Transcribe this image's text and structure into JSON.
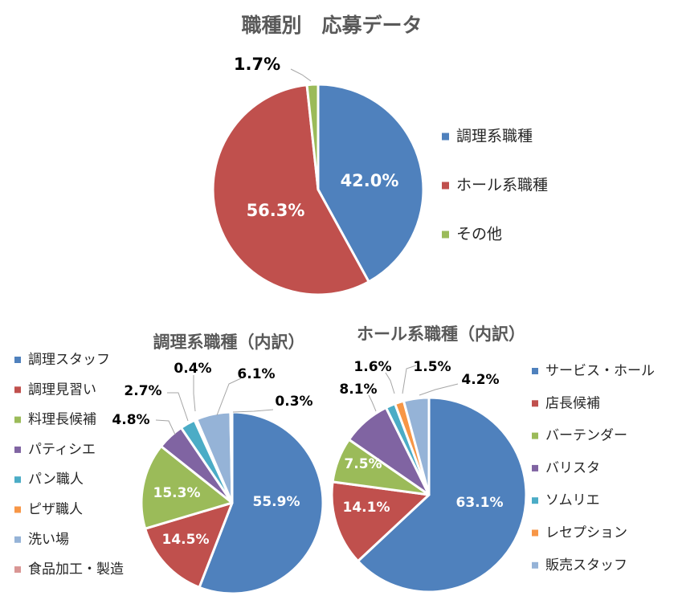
{
  "chart_data": [
    {
      "type": "pie",
      "title": "職種別　応募データ",
      "categories": [
        "調理系職種",
        "ホール系職種",
        "その他"
      ],
      "values": [
        42.0,
        56.3,
        1.7
      ],
      "labels": [
        "42.0%",
        "56.3%",
        "1.7%"
      ],
      "colors": [
        "#4f81bd",
        "#c0504d",
        "#9bbb59"
      ],
      "legend_position": "right"
    },
    {
      "type": "pie",
      "title": "調理系職種（内訳）",
      "categories": [
        "調理スタッフ",
        "調理見習い",
        "料理長候補",
        "パティシエ",
        "パン職人",
        "ピザ職人",
        "洗い場",
        "食品加工・製造"
      ],
      "values": [
        55.9,
        14.5,
        15.3,
        4.8,
        2.7,
        0.4,
        6.1,
        0.3
      ],
      "labels": [
        "55.9%",
        "14.5%",
        "15.3%",
        "4.8%",
        "2.7%",
        "0.4%",
        "6.1%",
        "0.3%"
      ],
      "colors": [
        "#4f81bd",
        "#c0504d",
        "#9bbb59",
        "#8064a2",
        "#4bacc6",
        "#f79646",
        "#95b3d7",
        "#d99694"
      ],
      "legend_position": "left"
    },
    {
      "type": "pie",
      "title": "ホール系職種（内訳）",
      "categories": [
        "サービス・ホール",
        "店長候補",
        "バーテンダー",
        "バリスタ",
        "ソムリエ",
        "レセプション",
        "販売スタッフ"
      ],
      "values": [
        63.1,
        14.1,
        7.5,
        8.1,
        1.6,
        1.5,
        4.2
      ],
      "labels": [
        "63.1%",
        "14.1%",
        "7.5%",
        "8.1%",
        "1.6%",
        "1.5%",
        "4.2%"
      ],
      "colors": [
        "#4f81bd",
        "#c0504d",
        "#9bbb59",
        "#8064a2",
        "#4bacc6",
        "#f79646",
        "#95b3d7"
      ],
      "legend_position": "right"
    }
  ]
}
